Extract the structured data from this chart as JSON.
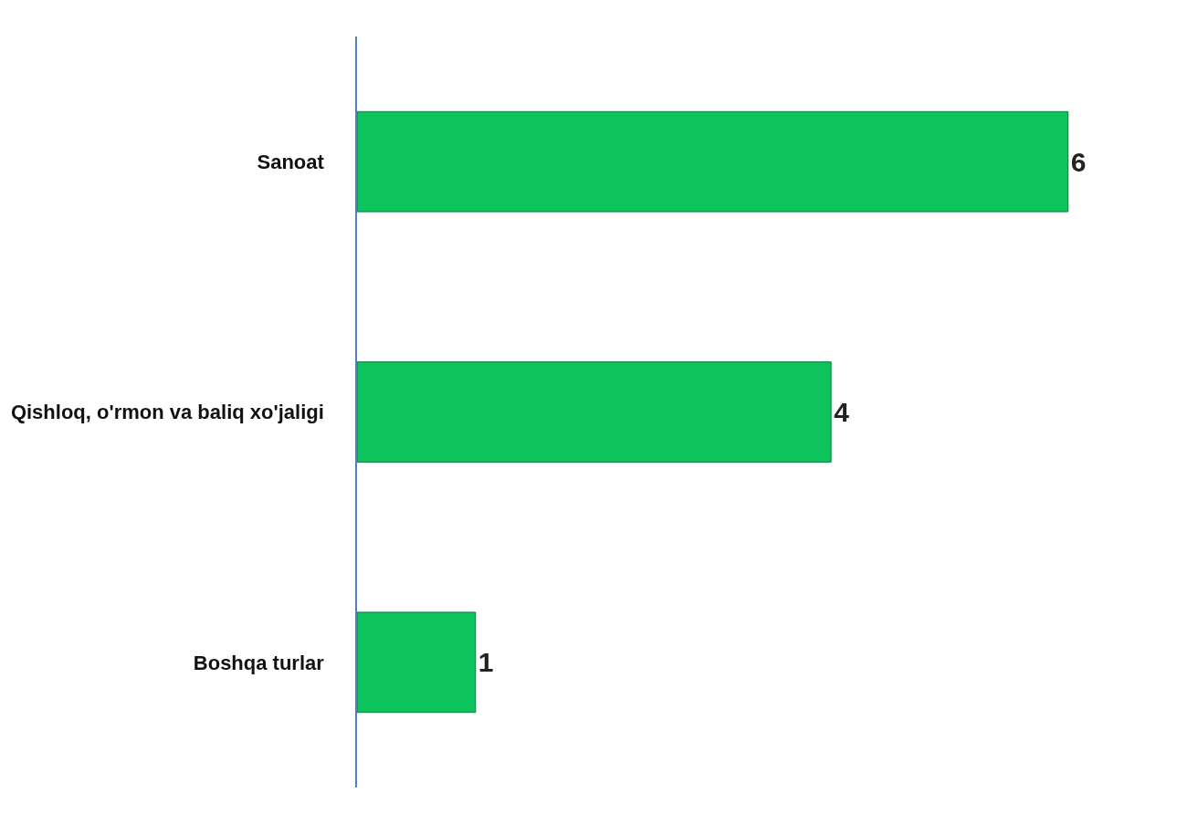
{
  "chart_data": {
    "type": "bar",
    "orientation": "horizontal",
    "categories": [
      "Sanoat",
      "Qishloq, o'rmon va baliq xo'jaligi",
      "Boshqa turlar"
    ],
    "values": [
      6,
      4,
      1
    ],
    "color": "#0cc35c",
    "data_labels": true,
    "legend": false
  }
}
